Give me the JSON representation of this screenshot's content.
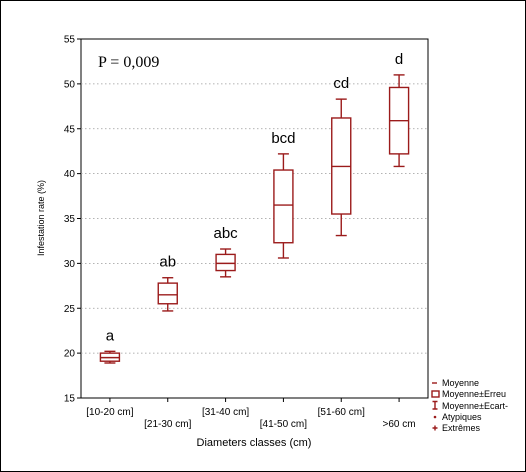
{
  "chart_data": {
    "type": "boxplot",
    "title": "",
    "xlabel": "Diameters classes (cm)",
    "ylabel": "Infestation rate (%)",
    "ylim": [
      15,
      55
    ],
    "yticks": [
      15,
      20,
      25,
      30,
      35,
      40,
      45,
      50,
      55
    ],
    "grid": true,
    "annotation": "P = 0,009",
    "categories": [
      "[10-20 cm]",
      "[21-30 cm]",
      "[31-40 cm]",
      "[41-50 cm]",
      "[51-60 cm]",
      ">60 cm"
    ],
    "boxes": [
      {
        "category": "[10-20 cm]",
        "letter": "a",
        "mean": 19.5,
        "box_low": 19.1,
        "box_high": 20.0,
        "whisker_low": 18.9,
        "whisker_high": 20.2
      },
      {
        "category": "[21-30 cm]",
        "letter": "ab",
        "mean": 26.5,
        "box_low": 25.5,
        "box_high": 27.8,
        "whisker_low": 24.7,
        "whisker_high": 28.4
      },
      {
        "category": "[31-40 cm]",
        "letter": "abc",
        "mean": 30.0,
        "box_low": 29.2,
        "box_high": 31.0,
        "whisker_low": 28.5,
        "whisker_high": 31.6
      },
      {
        "category": "[41-50 cm]",
        "letter": "bcd",
        "mean": 36.5,
        "box_low": 32.3,
        "box_high": 40.4,
        "whisker_low": 30.6,
        "whisker_high": 42.2
      },
      {
        "category": "[51-60 cm]",
        "letter": "cd",
        "mean": 40.8,
        "box_low": 35.5,
        "box_high": 46.2,
        "whisker_low": 33.1,
        "whisker_high": 48.3
      },
      {
        "category": ">60 cm",
        "letter": "d",
        "mean": 45.9,
        "box_low": 42.2,
        "box_high": 49.6,
        "whisker_low": 40.8,
        "whisker_high": 51.0
      }
    ],
    "legend": {
      "placement": "bottom-right",
      "entries": [
        "Moyenne",
        "Moyenne±Erreu",
        "Moyenne±Ecart-",
        "Atypiques",
        "Extrêmes"
      ]
    },
    "colors": {
      "box": "#9b1b1b",
      "grid": "#9a9a9a"
    }
  }
}
